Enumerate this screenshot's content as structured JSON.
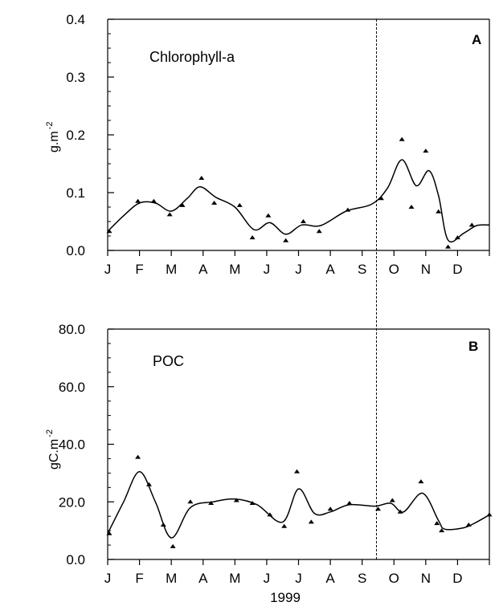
{
  "chart_data": [
    {
      "type": "scatter",
      "title": "Chlorophyll-a",
      "panel_letter": "A",
      "ylabel": "g.m",
      "ylabel_exp": "-2",
      "xlabel": "",
      "ylim": [
        0.0,
        0.4
      ],
      "yticks": [
        0.0,
        0.1,
        0.2,
        0.3,
        0.4
      ],
      "ytick_labels": [
        "0.0",
        "0.1",
        "0.2",
        "0.3",
        "0.4"
      ],
      "xlim": [
        0,
        12
      ],
      "month_labels": [
        "J",
        "F",
        "M",
        "A",
        "M",
        "J",
        "J",
        "A",
        "S",
        "O",
        "N",
        "D"
      ],
      "marker_line_month": 8.45,
      "points": [
        {
          "x": 0.05,
          "y": 0.033
        },
        {
          "x": 0.95,
          "y": 0.085
        },
        {
          "x": 1.45,
          "y": 0.085
        },
        {
          "x": 1.95,
          "y": 0.062
        },
        {
          "x": 2.35,
          "y": 0.078
        },
        {
          "x": 2.95,
          "y": 0.125
        },
        {
          "x": 3.35,
          "y": 0.082
        },
        {
          "x": 4.15,
          "y": 0.078
        },
        {
          "x": 4.55,
          "y": 0.022
        },
        {
          "x": 5.05,
          "y": 0.06
        },
        {
          "x": 5.6,
          "y": 0.017
        },
        {
          "x": 6.15,
          "y": 0.05
        },
        {
          "x": 6.65,
          "y": 0.033
        },
        {
          "x": 7.55,
          "y": 0.07
        },
        {
          "x": 8.6,
          "y": 0.09
        },
        {
          "x": 9.25,
          "y": 0.192
        },
        {
          "x": 9.55,
          "y": 0.075
        },
        {
          "x": 10.0,
          "y": 0.172
        },
        {
          "x": 10.4,
          "y": 0.067
        },
        {
          "x": 10.7,
          "y": 0.006
        },
        {
          "x": 11.0,
          "y": 0.022
        },
        {
          "x": 11.45,
          "y": 0.044
        }
      ],
      "curve": [
        {
          "x": 0.0,
          "y": 0.033
        },
        {
          "x": 0.5,
          "y": 0.06
        },
        {
          "x": 1.0,
          "y": 0.082
        },
        {
          "x": 1.5,
          "y": 0.082
        },
        {
          "x": 2.0,
          "y": 0.068
        },
        {
          "x": 2.5,
          "y": 0.09
        },
        {
          "x": 2.9,
          "y": 0.11
        },
        {
          "x": 3.4,
          "y": 0.092
        },
        {
          "x": 4.0,
          "y": 0.075
        },
        {
          "x": 4.6,
          "y": 0.036
        },
        {
          "x": 5.1,
          "y": 0.048
        },
        {
          "x": 5.6,
          "y": 0.028
        },
        {
          "x": 6.1,
          "y": 0.044
        },
        {
          "x": 6.7,
          "y": 0.043
        },
        {
          "x": 7.5,
          "y": 0.068
        },
        {
          "x": 8.3,
          "y": 0.08
        },
        {
          "x": 8.8,
          "y": 0.108
        },
        {
          "x": 9.25,
          "y": 0.157
        },
        {
          "x": 9.7,
          "y": 0.112
        },
        {
          "x": 10.1,
          "y": 0.138
        },
        {
          "x": 10.4,
          "y": 0.095
        },
        {
          "x": 10.7,
          "y": 0.018
        },
        {
          "x": 11.2,
          "y": 0.03
        },
        {
          "x": 11.6,
          "y": 0.043
        },
        {
          "x": 12.0,
          "y": 0.044
        }
      ]
    },
    {
      "type": "scatter",
      "title": "POC",
      "panel_letter": "B",
      "ylabel": "gC.m",
      "ylabel_exp": "-2",
      "xlabel": "1999",
      "ylim": [
        0.0,
        80.0
      ],
      "yticks": [
        0.0,
        20.0,
        40.0,
        60.0,
        80.0
      ],
      "ytick_labels": [
        "0.0",
        "20.0",
        "40.0",
        "60.0",
        "80.0"
      ],
      "xlim": [
        0,
        12
      ],
      "month_labels": [
        "J",
        "F",
        "M",
        "A",
        "M",
        "J",
        "J",
        "A",
        "S",
        "O",
        "N",
        "D"
      ],
      "marker_line_month": 8.45,
      "points": [
        {
          "x": 0.05,
          "y": 9.0
        },
        {
          "x": 0.95,
          "y": 35.5
        },
        {
          "x": 1.3,
          "y": 26.0
        },
        {
          "x": 1.75,
          "y": 12.0
        },
        {
          "x": 2.05,
          "y": 4.5
        },
        {
          "x": 2.6,
          "y": 20.0
        },
        {
          "x": 3.25,
          "y": 19.5
        },
        {
          "x": 4.05,
          "y": 20.5
        },
        {
          "x": 4.55,
          "y": 19.5
        },
        {
          "x": 5.1,
          "y": 15.5
        },
        {
          "x": 5.55,
          "y": 11.5
        },
        {
          "x": 5.95,
          "y": 30.5
        },
        {
          "x": 6.4,
          "y": 13.0
        },
        {
          "x": 7.0,
          "y": 17.5
        },
        {
          "x": 7.6,
          "y": 19.5
        },
        {
          "x": 8.5,
          "y": 17.5
        },
        {
          "x": 8.95,
          "y": 20.5
        },
        {
          "x": 9.2,
          "y": 16.5
        },
        {
          "x": 9.85,
          "y": 27.0
        },
        {
          "x": 10.35,
          "y": 12.5
        },
        {
          "x": 10.5,
          "y": 10.0
        },
        {
          "x": 11.35,
          "y": 12.0
        },
        {
          "x": 12.0,
          "y": 15.5
        }
      ],
      "curve": [
        {
          "x": 0.0,
          "y": 9.0
        },
        {
          "x": 0.5,
          "y": 20.0
        },
        {
          "x": 1.0,
          "y": 30.5
        },
        {
          "x": 1.5,
          "y": 20.0
        },
        {
          "x": 2.0,
          "y": 7.5
        },
        {
          "x": 2.6,
          "y": 18.0
        },
        {
          "x": 3.3,
          "y": 20.0
        },
        {
          "x": 4.0,
          "y": 21.0
        },
        {
          "x": 4.7,
          "y": 19.0
        },
        {
          "x": 5.5,
          "y": 13.0
        },
        {
          "x": 6.0,
          "y": 24.5
        },
        {
          "x": 6.5,
          "y": 16.0
        },
        {
          "x": 7.0,
          "y": 16.5
        },
        {
          "x": 7.6,
          "y": 19.0
        },
        {
          "x": 8.4,
          "y": 18.5
        },
        {
          "x": 8.9,
          "y": 19.5
        },
        {
          "x": 9.3,
          "y": 16.5
        },
        {
          "x": 9.9,
          "y": 23.0
        },
        {
          "x": 10.4,
          "y": 13.5
        },
        {
          "x": 10.6,
          "y": 10.5
        },
        {
          "x": 11.2,
          "y": 11.0
        },
        {
          "x": 11.6,
          "y": 13.0
        },
        {
          "x": 12.0,
          "y": 15.5
        }
      ]
    }
  ]
}
